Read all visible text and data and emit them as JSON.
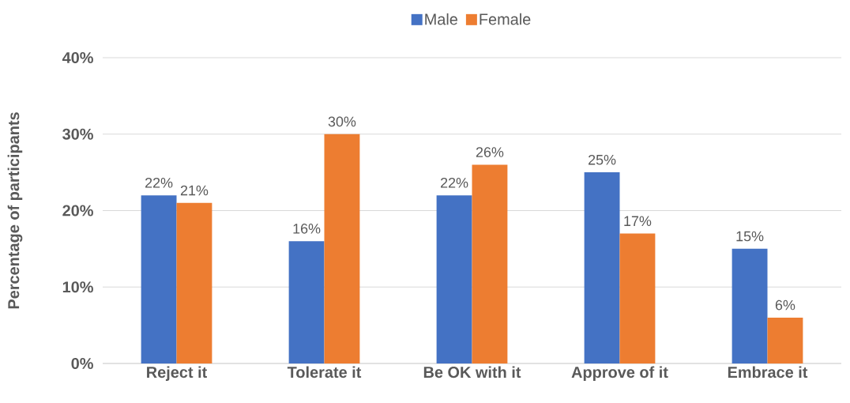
{
  "chart_data": {
    "type": "bar",
    "ylabel": "Percentage of participants",
    "categories": [
      "Reject it",
      "Tolerate it",
      "Be OK with it",
      "Approve of it",
      "Embrace it"
    ],
    "series": [
      {
        "name": "Male",
        "color": "#4472c4",
        "values": [
          22,
          16,
          22,
          25,
          15
        ],
        "value_labels": [
          "22%",
          "16%",
          "22%",
          "25%",
          "15%"
        ]
      },
      {
        "name": "Female",
        "color": "#ed7d31",
        "values": [
          21,
          30,
          26,
          17,
          6
        ],
        "value_labels": [
          "21%",
          "30%",
          "26%",
          "17%",
          "6%"
        ]
      }
    ],
    "ylim": [
      0,
      40
    ],
    "yticks": [
      {
        "value": 0,
        "label": "0%"
      },
      {
        "value": 10,
        "label": "10%"
      },
      {
        "value": 20,
        "label": "20%"
      },
      {
        "value": 30,
        "label": "30%"
      },
      {
        "value": 40,
        "label": "40%"
      }
    ],
    "grid": "y",
    "legend": "top"
  }
}
